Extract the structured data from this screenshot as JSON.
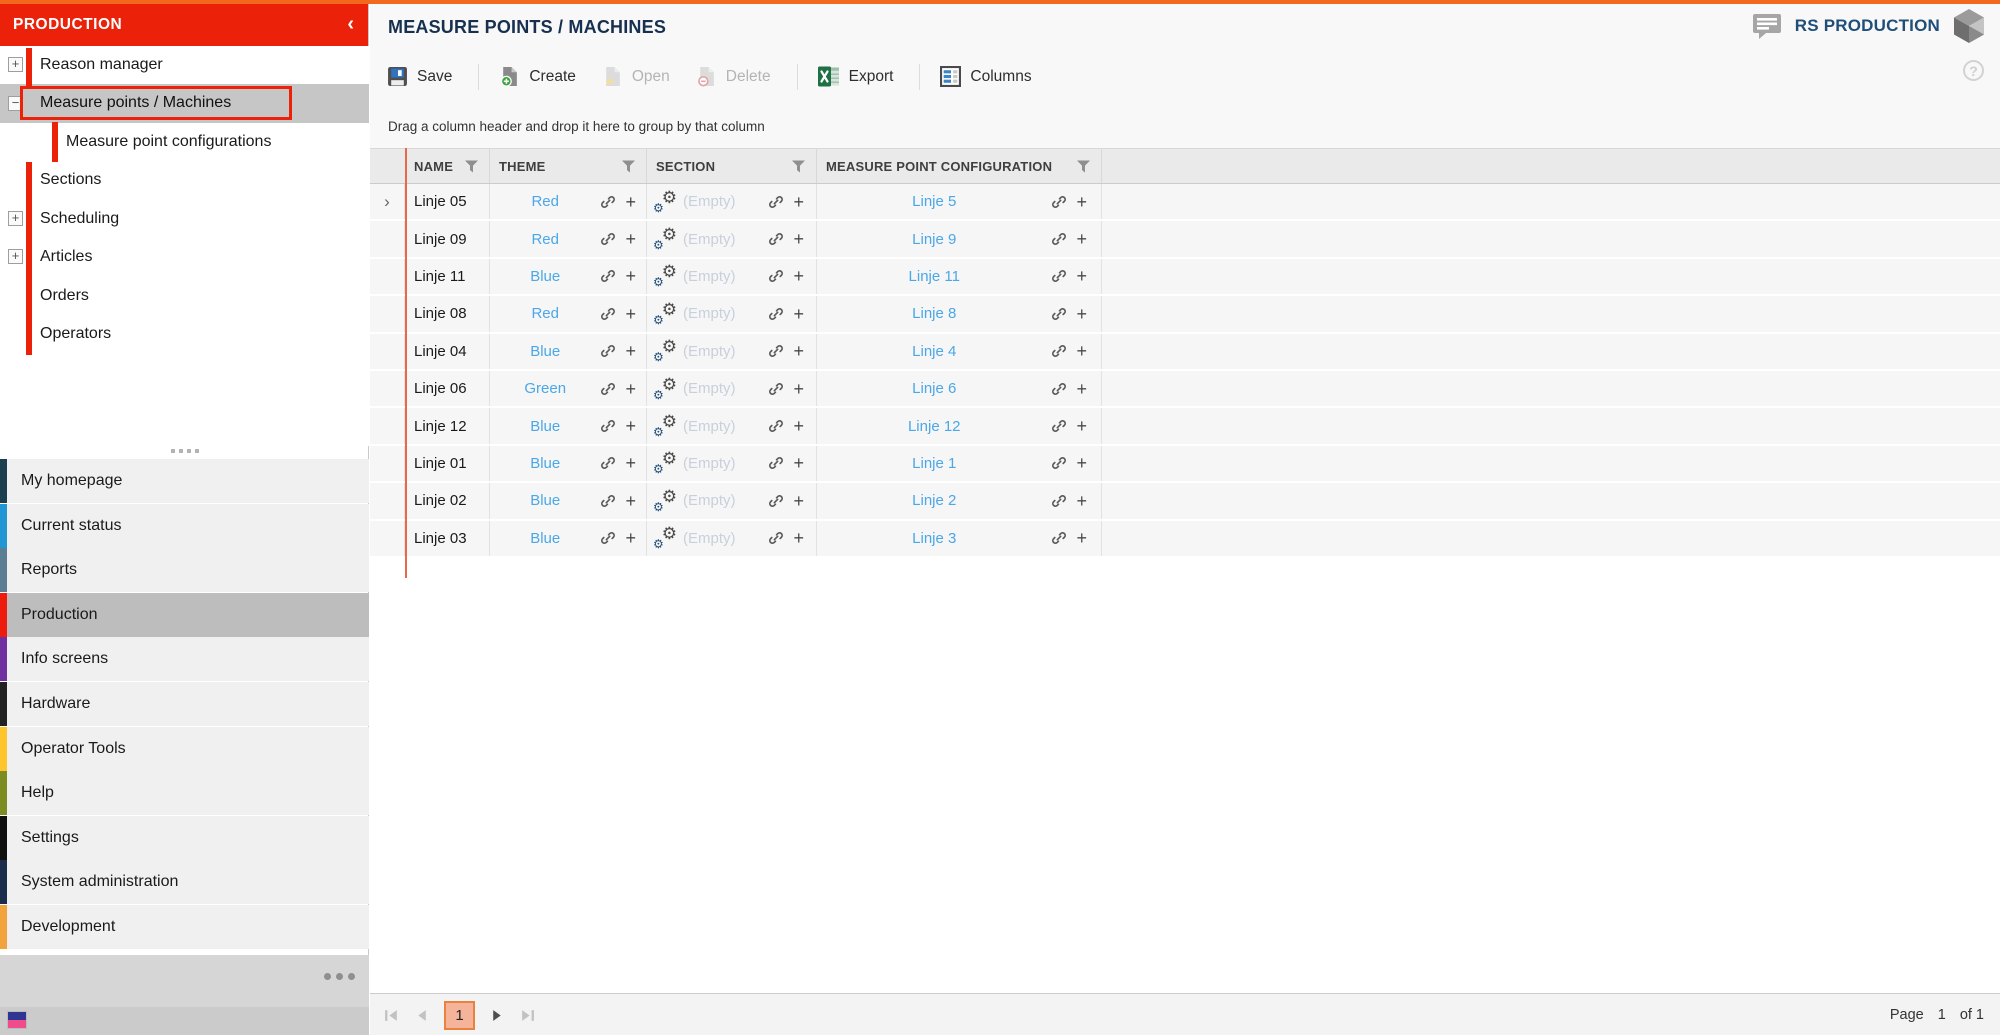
{
  "app": {
    "top_strip_color": "#F2691E",
    "accent_red": "#EC2109",
    "link_blue": "#4AA7E8"
  },
  "sidebar": {
    "header": {
      "title": "PRODUCTION",
      "collapse_icon": "‹"
    },
    "tree": [
      {
        "label": "Reason manager",
        "expander": "+",
        "level": 0,
        "selected": false
      },
      {
        "label": "Measure points / Machines",
        "expander": "−",
        "level": 0,
        "selected": true
      },
      {
        "label": "Measure point configurations",
        "expander": null,
        "level": 1,
        "selected": false
      },
      {
        "label": "Sections",
        "expander": null,
        "level": 0,
        "selected": false
      },
      {
        "label": "Scheduling",
        "expander": "+",
        "level": 0,
        "selected": false
      },
      {
        "label": "Articles",
        "expander": "+",
        "level": 0,
        "selected": false
      },
      {
        "label": "Orders",
        "expander": null,
        "level": 0,
        "selected": false
      },
      {
        "label": "Operators",
        "expander": null,
        "level": 0,
        "selected": false
      }
    ],
    "menu": [
      {
        "label": "My homepage",
        "color": "#1C3F50",
        "selected": false
      },
      {
        "label": "Current status",
        "color": "#2196D3",
        "selected": false
      },
      {
        "label": "Reports",
        "color": "#5B7E93",
        "selected": false
      },
      {
        "label": "Production",
        "color": "#EE1C0C",
        "selected": true
      },
      {
        "label": "Info screens",
        "color": "#7030A0",
        "selected": false
      },
      {
        "label": "Hardware",
        "color": "#222222",
        "selected": false
      },
      {
        "label": "Operator Tools",
        "color": "#FFC52C",
        "selected": false
      },
      {
        "label": "Help",
        "color": "#7C8C20",
        "selected": false
      },
      {
        "label": "Settings",
        "color": "#0F0F0F",
        "selected": false
      },
      {
        "label": "System administration",
        "color": "#1C2C4C",
        "selected": false
      },
      {
        "label": "Development",
        "color": "#F2A33C",
        "selected": false
      }
    ]
  },
  "header": {
    "title": "MEASURE POINTS / MACHINES",
    "brand": "RS PRODUCTION",
    "help_icon": "?"
  },
  "toolbar": {
    "save_label": "Save",
    "create_label": "Create",
    "open_label": "Open",
    "delete_label": "Delete",
    "export_label": "Export",
    "columns_label": "Columns"
  },
  "grid": {
    "group_hint": "Drag a column header and drop it here to group by that column",
    "columns": [
      "NAME",
      "THEME",
      "SECTION",
      "MEASURE POINT CONFIGURATION"
    ],
    "empty_label": "(Empty)",
    "expand_icon": "›",
    "rows": [
      {
        "name": "Linje 05",
        "theme": "Red",
        "section": "",
        "config": "Linje 5"
      },
      {
        "name": "Linje 09",
        "theme": "Red",
        "section": "",
        "config": "Linje 9"
      },
      {
        "name": "Linje 11",
        "theme": "Blue",
        "section": "",
        "config": "Linje 11"
      },
      {
        "name": "Linje 08",
        "theme": "Red",
        "section": "",
        "config": "Linje 8"
      },
      {
        "name": "Linje 04",
        "theme": "Blue",
        "section": "",
        "config": "Linje 4"
      },
      {
        "name": "Linje 06",
        "theme": "Green",
        "section": "",
        "config": "Linje 6"
      },
      {
        "name": "Linje 12",
        "theme": "Blue",
        "section": "",
        "config": "Linje 12"
      },
      {
        "name": "Linje 01",
        "theme": "Blue",
        "section": "",
        "config": "Linje 1"
      },
      {
        "name": "Linje 02",
        "theme": "Blue",
        "section": "",
        "config": "Linje 2"
      },
      {
        "name": "Linje 03",
        "theme": "Blue",
        "section": "",
        "config": "Linje 3"
      }
    ]
  },
  "pager": {
    "page_label": "Page",
    "current_page": "1",
    "of_label": "of 1"
  }
}
